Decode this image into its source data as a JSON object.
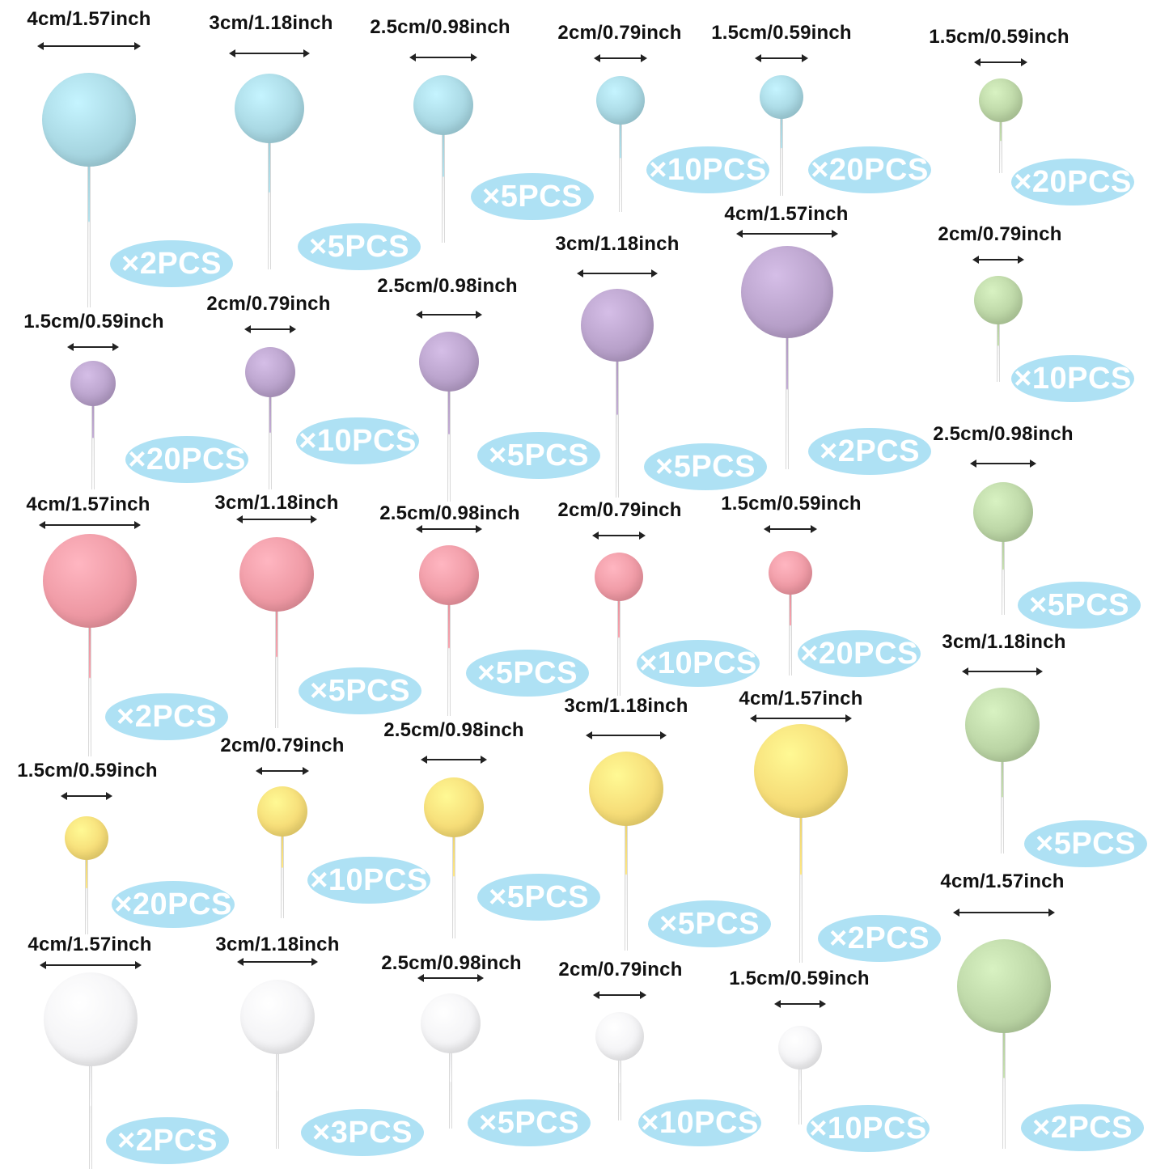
{
  "colors": {
    "blue": "#a9d8e3",
    "purple": "#b9a2cb",
    "pink": "#ef9aa5",
    "yellow": "#f6dd78",
    "white": "#f4f4f6",
    "green": "#bcd6a6",
    "badge": "#aee1f4"
  },
  "items": [
    {
      "color": "blue",
      "size": "4cm/1.57inch",
      "qty": "×2PCS"
    },
    {
      "color": "blue",
      "size": "3cm/1.18inch",
      "qty": "×5PCS"
    },
    {
      "color": "blue",
      "size": "2.5cm/0.98inch",
      "qty": "×5PCS"
    },
    {
      "color": "blue",
      "size": "2cm/0.79inch",
      "qty": "×10PCS"
    },
    {
      "color": "blue",
      "size": "1.5cm/0.59inch",
      "qty": "×20PCS"
    },
    {
      "color": "green",
      "size": "1.5cm/0.59inch",
      "qty": "×20PCS"
    },
    {
      "color": "purple",
      "size": "1.5cm/0.59inch",
      "qty": "×20PCS"
    },
    {
      "color": "purple",
      "size": "2cm/0.79inch",
      "qty": "×10PCS"
    },
    {
      "color": "purple",
      "size": "2.5cm/0.98inch",
      "qty": "×5PCS"
    },
    {
      "color": "purple",
      "size": "3cm/1.18inch",
      "qty": "×5PCS"
    },
    {
      "color": "purple",
      "size": "4cm/1.57inch",
      "qty": "×2PCS"
    },
    {
      "color": "green",
      "size": "2cm/0.79inch",
      "qty": "×10PCS"
    },
    {
      "color": "pink",
      "size": "4cm/1.57inch",
      "qty": "×2PCS"
    },
    {
      "color": "pink",
      "size": "3cm/1.18inch",
      "qty": "×5PCS"
    },
    {
      "color": "pink",
      "size": "2.5cm/0.98inch",
      "qty": "×5PCS"
    },
    {
      "color": "pink",
      "size": "2cm/0.79inch",
      "qty": "×10PCS"
    },
    {
      "color": "pink",
      "size": "1.5cm/0.59inch",
      "qty": "×20PCS"
    },
    {
      "color": "green",
      "size": "2.5cm/0.98inch",
      "qty": "×5PCS"
    },
    {
      "color": "yellow",
      "size": "1.5cm/0.59inch",
      "qty": "×20PCS"
    },
    {
      "color": "yellow",
      "size": "2cm/0.79inch",
      "qty": "×10PCS"
    },
    {
      "color": "yellow",
      "size": "2.5cm/0.98inch",
      "qty": "×5PCS"
    },
    {
      "color": "yellow",
      "size": "3cm/1.18inch",
      "qty": "×5PCS"
    },
    {
      "color": "yellow",
      "size": "4cm/1.57inch",
      "qty": "×2PCS"
    },
    {
      "color": "green",
      "size": "3cm/1.18inch",
      "qty": "×5PCS"
    },
    {
      "color": "white",
      "size": "4cm/1.57inch",
      "qty": "×2PCS"
    },
    {
      "color": "white",
      "size": "3cm/1.18inch",
      "qty": "×3PCS"
    },
    {
      "color": "white",
      "size": "2.5cm/0.98inch",
      "qty": "×5PCS"
    },
    {
      "color": "white",
      "size": "2cm/0.79inch",
      "qty": "×10PCS"
    },
    {
      "color": "white",
      "size": "1.5cm/0.59inch",
      "qty": "×10PCS"
    },
    {
      "color": "green",
      "size": "4cm/1.57inch",
      "qty": "×2PCS"
    }
  ]
}
